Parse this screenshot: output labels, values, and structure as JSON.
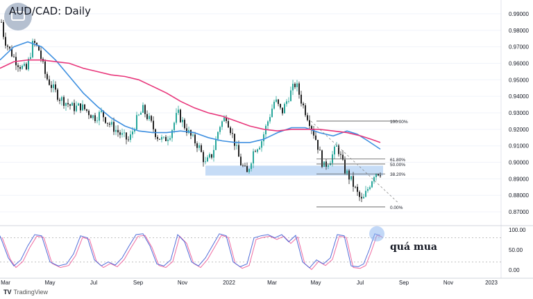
{
  "title": "AUD/CAD: Daily",
  "annotation": "quá mua",
  "branding": "TradingView",
  "logo_icon": "tradingview-icon",
  "colors": {
    "up": "#26a69a",
    "down": "#222222",
    "ma_fast": "#3d8fe0",
    "ma_slow": "#e8357a",
    "zone": "#bcd6f5",
    "stoch_k": "#4f6bd8",
    "stoch_d": "#ef6aa0",
    "highlight": "#8fb8f0"
  },
  "chart_data": [
    {
      "type": "candlestick",
      "title": "AUD/CAD: Daily",
      "x_tick_labels": [
        "Mar",
        "May",
        "Jul",
        "Sep",
        "Nov",
        "2022",
        "Mar",
        "May",
        "Jul",
        "Sep",
        "Nov",
        "2023"
      ],
      "y_tick_labels": [
        "0.99000",
        "0.98000",
        "0.97000",
        "0.96000",
        "0.95000",
        "0.94000",
        "0.93000",
        "0.92000",
        "0.91000",
        "0.90000",
        "0.89000",
        "0.88000",
        "0.87000"
      ],
      "ylim": [
        0.865,
        0.995
      ],
      "price_path": [
        [
          0,
          0.99
        ],
        [
          6,
          0.975
        ],
        [
          14,
          0.968
        ],
        [
          22,
          0.962
        ],
        [
          30,
          0.958
        ],
        [
          38,
          0.956
        ],
        [
          48,
          0.973
        ],
        [
          56,
          0.968
        ],
        [
          66,
          0.952
        ],
        [
          76,
          0.945
        ],
        [
          86,
          0.939
        ],
        [
          96,
          0.936
        ],
        [
          106,
          0.933
        ],
        [
          116,
          0.934
        ],
        [
          126,
          0.931
        ],
        [
          136,
          0.927
        ],
        [
          146,
          0.93
        ],
        [
          156,
          0.924
        ],
        [
          166,
          0.92
        ],
        [
          176,
          0.916
        ],
        [
          186,
          0.913
        ],
        [
          196,
          0.925
        ],
        [
          206,
          0.932
        ],
        [
          216,
          0.925
        ],
        [
          226,
          0.916
        ],
        [
          236,
          0.913
        ],
        [
          246,
          0.918
        ],
        [
          256,
          0.93
        ],
        [
          266,
          0.922
        ],
        [
          276,
          0.915
        ],
        [
          286,
          0.91
        ],
        [
          296,
          0.899
        ],
        [
          306,
          0.905
        ],
        [
          316,
          0.922
        ],
        [
          326,
          0.928
        ],
        [
          336,
          0.915
        ],
        [
          346,
          0.9
        ],
        [
          356,
          0.893
        ],
        [
          366,
          0.908
        ],
        [
          376,
          0.912
        ],
        [
          386,
          0.925
        ],
        [
          396,
          0.938
        ],
        [
          406,
          0.93
        ],
        [
          416,
          0.94
        ],
        [
          426,
          0.948
        ],
        [
          436,
          0.935
        ],
        [
          446,
          0.925
        ],
        [
          456,
          0.913
        ],
        [
          466,
          0.897
        ],
        [
          476,
          0.902
        ],
        [
          486,
          0.91
        ],
        [
          496,
          0.896
        ],
        [
          506,
          0.889
        ],
        [
          516,
          0.88
        ],
        [
          522,
          0.876
        ],
        [
          528,
          0.882
        ],
        [
          534,
          0.888
        ],
        [
          540,
          0.894
        ],
        [
          546,
          0.894
        ]
      ],
      "series": [
        {
          "name": "",
          "values": [
            [
              0,
              0.962
            ],
            [
              20,
              0.97
            ],
            [
              40,
              0.973
            ],
            [
              60,
              0.97
            ],
            [
              80,
              0.962
            ],
            [
              100,
              0.952
            ],
            [
              120,
              0.942
            ],
            [
              140,
              0.934
            ],
            [
              160,
              0.927
            ],
            [
              180,
              0.922
            ],
            [
              200,
              0.919
            ],
            [
              220,
              0.918
            ],
            [
              240,
              0.918
            ],
            [
              260,
              0.919
            ],
            [
              280,
              0.918
            ],
            [
              300,
              0.915
            ],
            [
              320,
              0.913
            ],
            [
              340,
              0.912
            ],
            [
              360,
              0.912
            ],
            [
              380,
              0.914
            ],
            [
              400,
              0.918
            ],
            [
              420,
              0.921
            ],
            [
              440,
              0.921
            ],
            [
              460,
              0.918
            ],
            [
              480,
              0.916
            ],
            [
              500,
              0.919
            ],
            [
              515,
              0.917
            ],
            [
              530,
              0.913
            ],
            [
              548,
              0.908
            ]
          ]
        },
        {
          "name": "",
          "values": [
            [
              0,
              0.957
            ],
            [
              20,
              0.961
            ],
            [
              40,
              0.962
            ],
            [
              60,
              0.962
            ],
            [
              80,
              0.961
            ],
            [
              100,
              0.96
            ],
            [
              120,
              0.957
            ],
            [
              140,
              0.955
            ],
            [
              160,
              0.953
            ],
            [
              180,
              0.952
            ],
            [
              200,
              0.95
            ],
            [
              220,
              0.946
            ],
            [
              240,
              0.942
            ],
            [
              260,
              0.937
            ],
            [
              280,
              0.933
            ],
            [
              300,
              0.93
            ],
            [
              320,
              0.928
            ],
            [
              340,
              0.925
            ],
            [
              360,
              0.922
            ],
            [
              380,
              0.92
            ],
            [
              400,
              0.919
            ],
            [
              420,
              0.92
            ],
            [
              440,
              0.92
            ],
            [
              460,
              0.92
            ],
            [
              480,
              0.919
            ],
            [
              500,
              0.918
            ],
            [
              520,
              0.916
            ],
            [
              535,
              0.914
            ],
            [
              548,
              0.912
            ]
          ]
        }
      ],
      "support_zone": [
        0.892,
        0.898
      ],
      "fibonacci": [
        {
          "level": "100.00%",
          "value": 0.925
        },
        {
          "level": "61.80%",
          "value": 0.902
        },
        {
          "level": "50.00%",
          "value": 0.899
        },
        {
          "level": "38.20%",
          "value": 0.893
        },
        {
          "level": "0.00%",
          "value": 0.873
        }
      ],
      "trendline": [
        [
          448,
          0.925
        ],
        [
          575,
          0.875
        ]
      ]
    },
    {
      "type": "line",
      "title": "",
      "y_tick_labels": [
        "100.00",
        "50.00",
        "0.00"
      ],
      "ylim": [
        0,
        100
      ],
      "reference_lines": [
        80,
        20
      ],
      "series": [
        {
          "name": "",
          "values": [
            [
              0,
              85
            ],
            [
              12,
              30
            ],
            [
              20,
              10
            ],
            [
              30,
              25
            ],
            [
              40,
              60
            ],
            [
              50,
              88
            ],
            [
              60,
              85
            ],
            [
              72,
              20
            ],
            [
              84,
              10
            ],
            [
              96,
              15
            ],
            [
              106,
              40
            ],
            [
              116,
              85
            ],
            [
              126,
              80
            ],
            [
              136,
              25
            ],
            [
              146,
              10
            ],
            [
              156,
              20
            ],
            [
              166,
              12
            ],
            [
              176,
              30
            ],
            [
              186,
              60
            ],
            [
              196,
              88
            ],
            [
              206,
              90
            ],
            [
              216,
              60
            ],
            [
              226,
              15
            ],
            [
              236,
              10
            ],
            [
              246,
              25
            ],
            [
              256,
              88
            ],
            [
              266,
              70
            ],
            [
              276,
              20
            ],
            [
              286,
              10
            ],
            [
              296,
              30
            ],
            [
              306,
              60
            ],
            [
              316,
              90
            ],
            [
              326,
              85
            ],
            [
              336,
              20
            ],
            [
              346,
              8
            ],
            [
              356,
              15
            ],
            [
              366,
              80
            ],
            [
              376,
              85
            ],
            [
              386,
              88
            ],
            [
              396,
              80
            ],
            [
              406,
              88
            ],
            [
              416,
              70
            ],
            [
              426,
              86
            ],
            [
              436,
              20
            ],
            [
              446,
              5
            ],
            [
              456,
              25
            ],
            [
              466,
              15
            ],
            [
              476,
              30
            ],
            [
              486,
              88
            ],
            [
              496,
              85
            ],
            [
              506,
              10
            ],
            [
              516,
              8
            ],
            [
              524,
              15
            ],
            [
              532,
              50
            ],
            [
              540,
              90
            ],
            [
              548,
              86
            ]
          ]
        }
      ],
      "overbought_value": 90
    }
  ]
}
